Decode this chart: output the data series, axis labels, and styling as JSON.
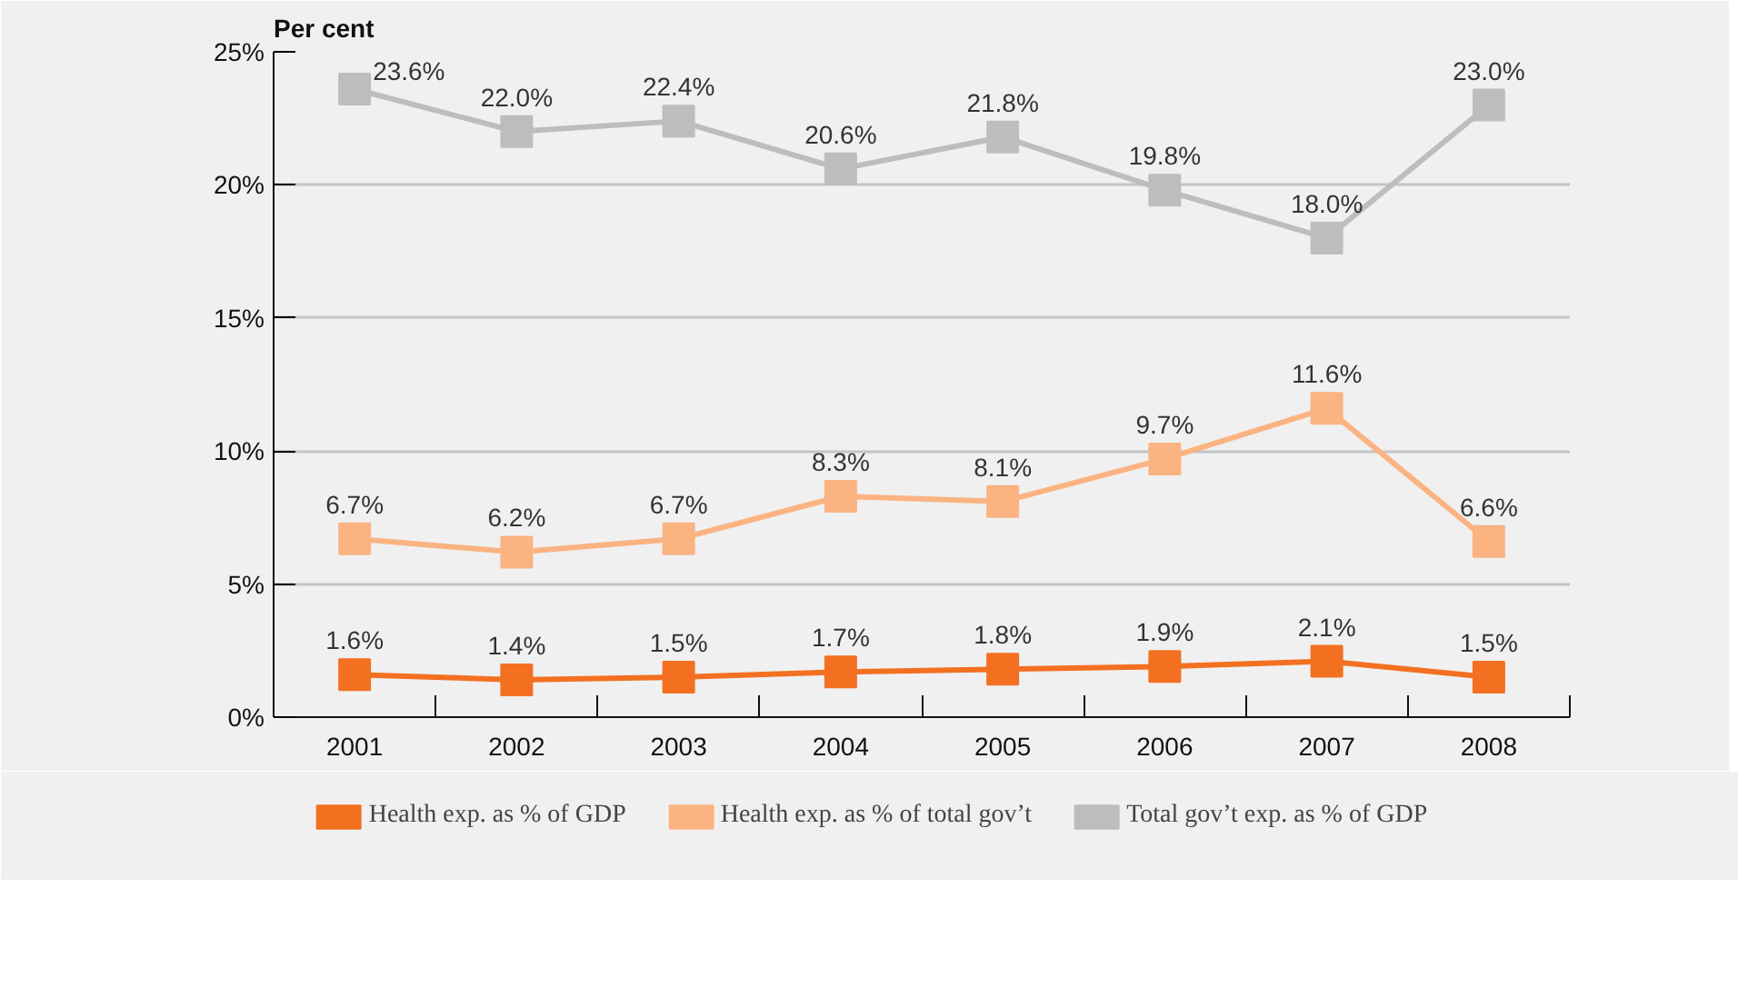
{
  "chart_data": {
    "type": "line",
    "ylabel": "Per cent",
    "categories": [
      "2001",
      "2002",
      "2003",
      "2004",
      "2005",
      "2006",
      "2007",
      "2008"
    ],
    "ylim": [
      0,
      25
    ],
    "yticks": [
      {
        "value": 0,
        "label": "0%"
      },
      {
        "value": 5,
        "label": "5%"
      },
      {
        "value": 10,
        "label": "10%"
      },
      {
        "value": 15,
        "label": "15%"
      },
      {
        "value": 20,
        "label": "20%"
      },
      {
        "value": 25,
        "label": "25%"
      }
    ],
    "grid": "y",
    "legend": "bottom",
    "marker": "square",
    "line_style": "solid",
    "series": [
      {
        "name": "Health exp. as % of GDP",
        "color": "#f37021",
        "values": [
          1.6,
          1.4,
          1.5,
          1.7,
          1.8,
          1.9,
          2.1,
          1.5
        ],
        "value_labels": [
          "1.6%",
          "1.4%",
          "1.5%",
          "1.7%",
          "1.8%",
          "1.9%",
          "2.1%",
          "1.5%"
        ]
      },
      {
        "name": "Health exp. as % of total gov’t",
        "color": "#fbb382",
        "values": [
          6.7,
          6.2,
          6.7,
          8.3,
          8.1,
          9.7,
          11.6,
          6.6
        ],
        "value_labels": [
          "6.7%",
          "6.2%",
          "6.7%",
          "8.3%",
          "8.1%",
          "9.7%",
          "11.6%",
          "6.6%"
        ]
      },
      {
        "name": "Total gov’t exp. as % of GDP",
        "color": "#bcbdbf",
        "values": [
          23.6,
          22.0,
          22.4,
          20.6,
          21.8,
          19.8,
          18.0,
          23.0
        ],
        "value_labels": [
          "23.6%",
          "22.0%",
          "22.4%",
          "20.6%",
          "21.8%",
          "19.8%",
          "18.0%",
          "23.0%"
        ]
      }
    ]
  }
}
